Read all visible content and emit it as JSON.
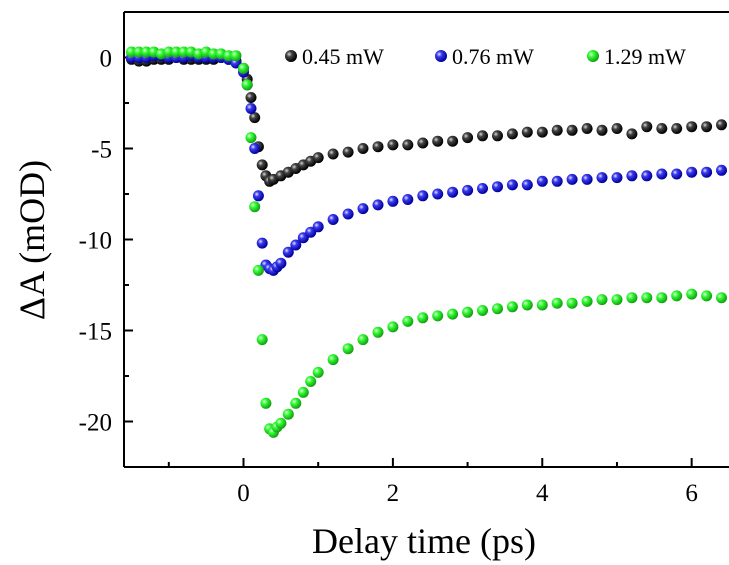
{
  "chart_data": {
    "type": "scatter",
    "title": "",
    "xlabel": "Delay time (ps)",
    "ylabel": "ΔA (mOD)",
    "xlim": [
      -1.6,
      6.5
    ],
    "ylim": [
      -22.5,
      2.5
    ],
    "x_ticks": [
      0,
      2,
      4,
      6
    ],
    "y_ticks": [
      0,
      -5,
      -10,
      -15,
      -20
    ],
    "grid": false,
    "legend_position": "top-right",
    "series": [
      {
        "name": "0.45 mW",
        "color": "#000000",
        "x": [
          -1.5,
          -1.4,
          -1.3,
          -1.2,
          -1.1,
          -1.0,
          -0.9,
          -0.8,
          -0.7,
          -0.6,
          -0.5,
          -0.4,
          -0.3,
          -0.2,
          -0.1,
          0.0,
          0.05,
          0.1,
          0.15,
          0.2,
          0.25,
          0.3,
          0.35,
          0.4,
          0.5,
          0.6,
          0.7,
          0.8,
          0.9,
          1.0,
          1.2,
          1.4,
          1.6,
          1.8,
          2.0,
          2.2,
          2.4,
          2.6,
          2.8,
          3.0,
          3.2,
          3.4,
          3.6,
          3.8,
          4.0,
          4.2,
          4.4,
          4.6,
          4.8,
          5.0,
          5.2,
          5.4,
          5.6,
          5.8,
          6.0,
          6.2,
          6.4
        ],
        "y": [
          -0.1,
          -0.2,
          -0.2,
          -0.1,
          -0.1,
          -0.1,
          0.0,
          -0.1,
          -0.1,
          -0.1,
          -0.1,
          -0.1,
          0.0,
          -0.1,
          -0.2,
          -0.6,
          -1.2,
          -2.2,
          -3.3,
          -4.9,
          -5.9,
          -6.5,
          -6.8,
          -6.7,
          -6.5,
          -6.3,
          -6.1,
          -5.9,
          -5.7,
          -5.5,
          -5.3,
          -5.2,
          -5.0,
          -4.9,
          -4.8,
          -4.8,
          -4.7,
          -4.6,
          -4.6,
          -4.4,
          -4.3,
          -4.3,
          -4.2,
          -4.1,
          -4.1,
          -4.0,
          -4.0,
          -3.9,
          -4.0,
          -3.9,
          -4.2,
          -3.8,
          -3.9,
          -3.9,
          -3.8,
          -3.8,
          -3.7
        ]
      },
      {
        "name": "0.76 mW",
        "color": "#1f1fe0",
        "x": [
          -1.5,
          -1.4,
          -1.3,
          -1.2,
          -1.1,
          -1.0,
          -0.9,
          -0.8,
          -0.7,
          -0.6,
          -0.5,
          -0.4,
          -0.3,
          -0.2,
          -0.1,
          0.0,
          0.05,
          0.1,
          0.15,
          0.2,
          0.25,
          0.3,
          0.35,
          0.4,
          0.45,
          0.5,
          0.6,
          0.7,
          0.8,
          0.9,
          1.0,
          1.2,
          1.4,
          1.6,
          1.8,
          2.0,
          2.2,
          2.4,
          2.6,
          2.8,
          3.0,
          3.2,
          3.4,
          3.6,
          3.8,
          4.0,
          4.2,
          4.4,
          4.6,
          4.8,
          5.0,
          5.2,
          5.4,
          5.6,
          5.8,
          6.0,
          6.2,
          6.4
        ],
        "y": [
          0.0,
          0.0,
          0.0,
          0.1,
          0.1,
          0.0,
          0.0,
          0.0,
          0.1,
          0.0,
          0.0,
          0.0,
          0.0,
          -0.1,
          -0.3,
          -0.8,
          -1.5,
          -2.8,
          -5.0,
          -7.6,
          -10.2,
          -11.4,
          -11.6,
          -11.7,
          -11.5,
          -11.3,
          -10.7,
          -10.3,
          -9.9,
          -9.6,
          -9.3,
          -8.9,
          -8.6,
          -8.3,
          -8.1,
          -7.9,
          -7.8,
          -7.6,
          -7.5,
          -7.4,
          -7.3,
          -7.2,
          -7.1,
          -7.0,
          -7.0,
          -6.8,
          -6.8,
          -6.7,
          -6.7,
          -6.6,
          -6.6,
          -6.5,
          -6.5,
          -6.4,
          -6.4,
          -6.3,
          -6.3,
          -6.2
        ]
      },
      {
        "name": "1.29 mW",
        "color": "#22ee22",
        "x": [
          -1.5,
          -1.4,
          -1.3,
          -1.2,
          -1.1,
          -1.0,
          -0.9,
          -0.8,
          -0.7,
          -0.6,
          -0.5,
          -0.4,
          -0.3,
          -0.2,
          -0.1,
          0.0,
          0.05,
          0.1,
          0.15,
          0.2,
          0.25,
          0.3,
          0.35,
          0.4,
          0.45,
          0.5,
          0.6,
          0.7,
          0.8,
          0.9,
          1.0,
          1.2,
          1.4,
          1.6,
          1.8,
          2.0,
          2.2,
          2.4,
          2.6,
          2.8,
          3.0,
          3.2,
          3.4,
          3.6,
          3.8,
          4.0,
          4.2,
          4.4,
          4.6,
          4.8,
          5.0,
          5.2,
          5.4,
          5.6,
          5.8,
          6.0,
          6.2,
          6.4
        ],
        "y": [
          0.3,
          0.3,
          0.3,
          0.3,
          0.2,
          0.3,
          0.3,
          0.3,
          0.3,
          0.2,
          0.3,
          0.2,
          0.2,
          0.1,
          0.1,
          -0.6,
          -1.5,
          -4.4,
          -8.2,
          -11.7,
          -15.5,
          -19.0,
          -20.4,
          -20.6,
          -20.3,
          -20.1,
          -19.6,
          -19.0,
          -18.4,
          -17.8,
          -17.3,
          -16.6,
          -16.0,
          -15.5,
          -15.1,
          -14.8,
          -14.5,
          -14.3,
          -14.2,
          -14.1,
          -14.0,
          -13.9,
          -13.8,
          -13.7,
          -13.6,
          -13.6,
          -13.5,
          -13.5,
          -13.4,
          -13.3,
          -13.3,
          -13.2,
          -13.2,
          -13.2,
          -13.1,
          -13.0,
          -13.1,
          -13.2
        ]
      }
    ]
  }
}
